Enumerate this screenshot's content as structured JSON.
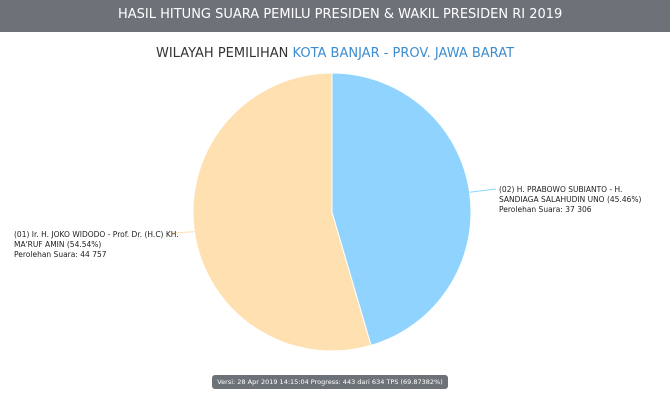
{
  "chart_data": {
    "type": "pie",
    "title": "HASIL HITUNG SUARA PEMILU PRESIDEN & WAKIL PRESIDEN RI 2019",
    "subtitle": "WILAYAH PEMILIHAN",
    "region": "KOTA BANJAR - PROV. JAWA BARAT",
    "categories": [
      "(01) Ir. H. JOKO WIDODO - Prof. Dr. (H.C) KH. MA'RUF AMIN (54.54%)",
      "(02) H. PRABOWO SUBIANTO - H. SANDIAGA SALAHUDIN UNO (45.46%)"
    ],
    "values": [
      44757,
      37306
    ],
    "value_labels": [
      "44 757",
      "37 306"
    ],
    "value_prefix": "Perolehan Suara:",
    "colors": [
      "#fee0b1",
      "#8fd3fe"
    ],
    "footer": "Versi: 28 Apr 2019 14:15:04 Progress: 443 dari 634 TPS (69.87382%)"
  }
}
